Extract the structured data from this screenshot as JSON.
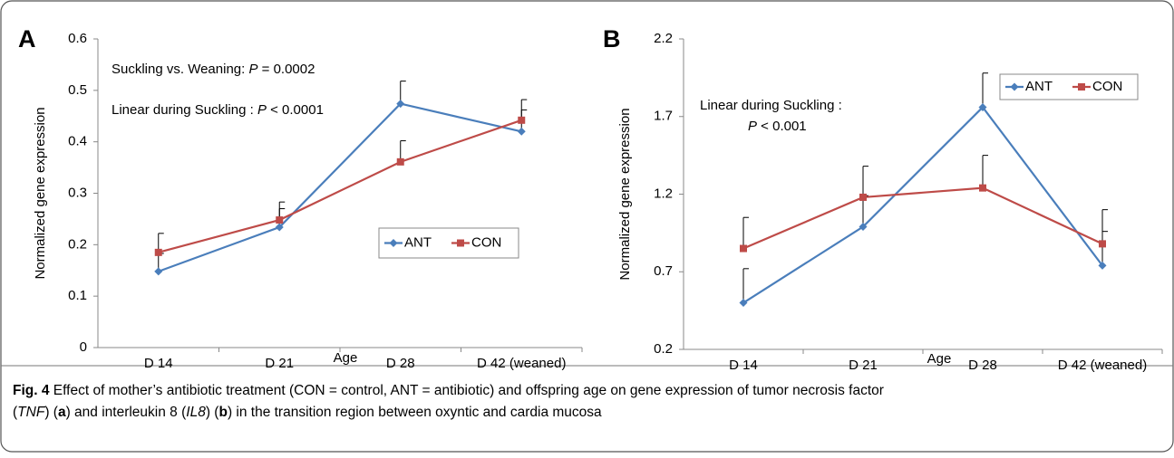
{
  "chart_data": [
    {
      "type": "line",
      "panel_label": "A",
      "ylabel": "Normalized gene expression",
      "xlabel": "Age",
      "categories": [
        "D 14",
        "D 21",
        "D 28",
        "D 42 (weaned)"
      ],
      "ylim": [
        0,
        0.6
      ],
      "yticks": [
        0,
        0.1,
        0.2,
        0.3,
        0.4,
        0.5,
        0.6
      ],
      "series": [
        {
          "name": "ANT",
          "color": "#4a7ebb",
          "marker": "diamond",
          "values": [
            0.148,
            0.234,
            0.474,
            0.42
          ],
          "errors": [
            0.035,
            0.036,
            0.044,
            0.042
          ]
        },
        {
          "name": "CON",
          "color": "#be4b48",
          "marker": "square",
          "values": [
            0.185,
            0.248,
            0.361,
            0.442
          ],
          "errors": [
            0.037,
            0.035,
            0.041,
            0.04
          ]
        }
      ],
      "annotations": [
        [
          {
            "text": "Suckling vs. Weaning: "
          },
          {
            "text": "P",
            "style": "italic"
          },
          {
            "text": " = 0.0002"
          }
        ],
        [
          {
            "text": "Linear during Suckling : "
          },
          {
            "text": "P",
            "style": "italic"
          },
          {
            "text": " < 0.0001"
          }
        ]
      ]
    },
    {
      "type": "line",
      "panel_label": "B",
      "ylabel": "Normalized gene expression",
      "xlabel": "Age",
      "categories": [
        "D 14",
        "D 21",
        "D 28",
        "D 42 (weaned)"
      ],
      "ylim": [
        0.2,
        2.2
      ],
      "yticks": [
        0.2,
        0.7,
        1.2,
        1.7,
        2.2
      ],
      "series": [
        {
          "name": "ANT",
          "color": "#4a7ebb",
          "marker": "diamond",
          "values": [
            0.5,
            0.99,
            1.76,
            0.74
          ],
          "errors": [
            0.22,
            0.2,
            0.22,
            0.22
          ]
        },
        {
          "name": "CON",
          "color": "#be4b48",
          "marker": "square",
          "values": [
            0.85,
            1.18,
            1.24,
            0.88
          ],
          "errors": [
            0.2,
            0.2,
            0.21,
            0.22
          ]
        }
      ],
      "annotations": [
        [
          {
            "text": "Linear during Suckling :"
          }
        ],
        [
          {
            "text": "P",
            "style": "italic"
          },
          {
            "text": " < 0.001"
          }
        ]
      ]
    }
  ],
  "caption": [
    {
      "text": "Fig. 4",
      "style": "bold"
    },
    {
      "text": " Effect of mother’s antibiotic treatment (CON = control, ANT = antibiotic) and offspring age on gene expression of tumor necrosis factor"
    },
    {
      "text": "TNF",
      "style": "italic"
    },
    {
      "text": ") ("
    },
    {
      "text": "a",
      "style": "bold"
    },
    {
      "text": ") and interleukin 8 ("
    },
    {
      "text": "IL8",
      "style": "italic"
    },
    {
      "text": ") ("
    },
    {
      "text": "b",
      "style": "bold"
    },
    {
      "text": ") in the transition region between oxyntic and cardia mucosa"
    }
  ]
}
